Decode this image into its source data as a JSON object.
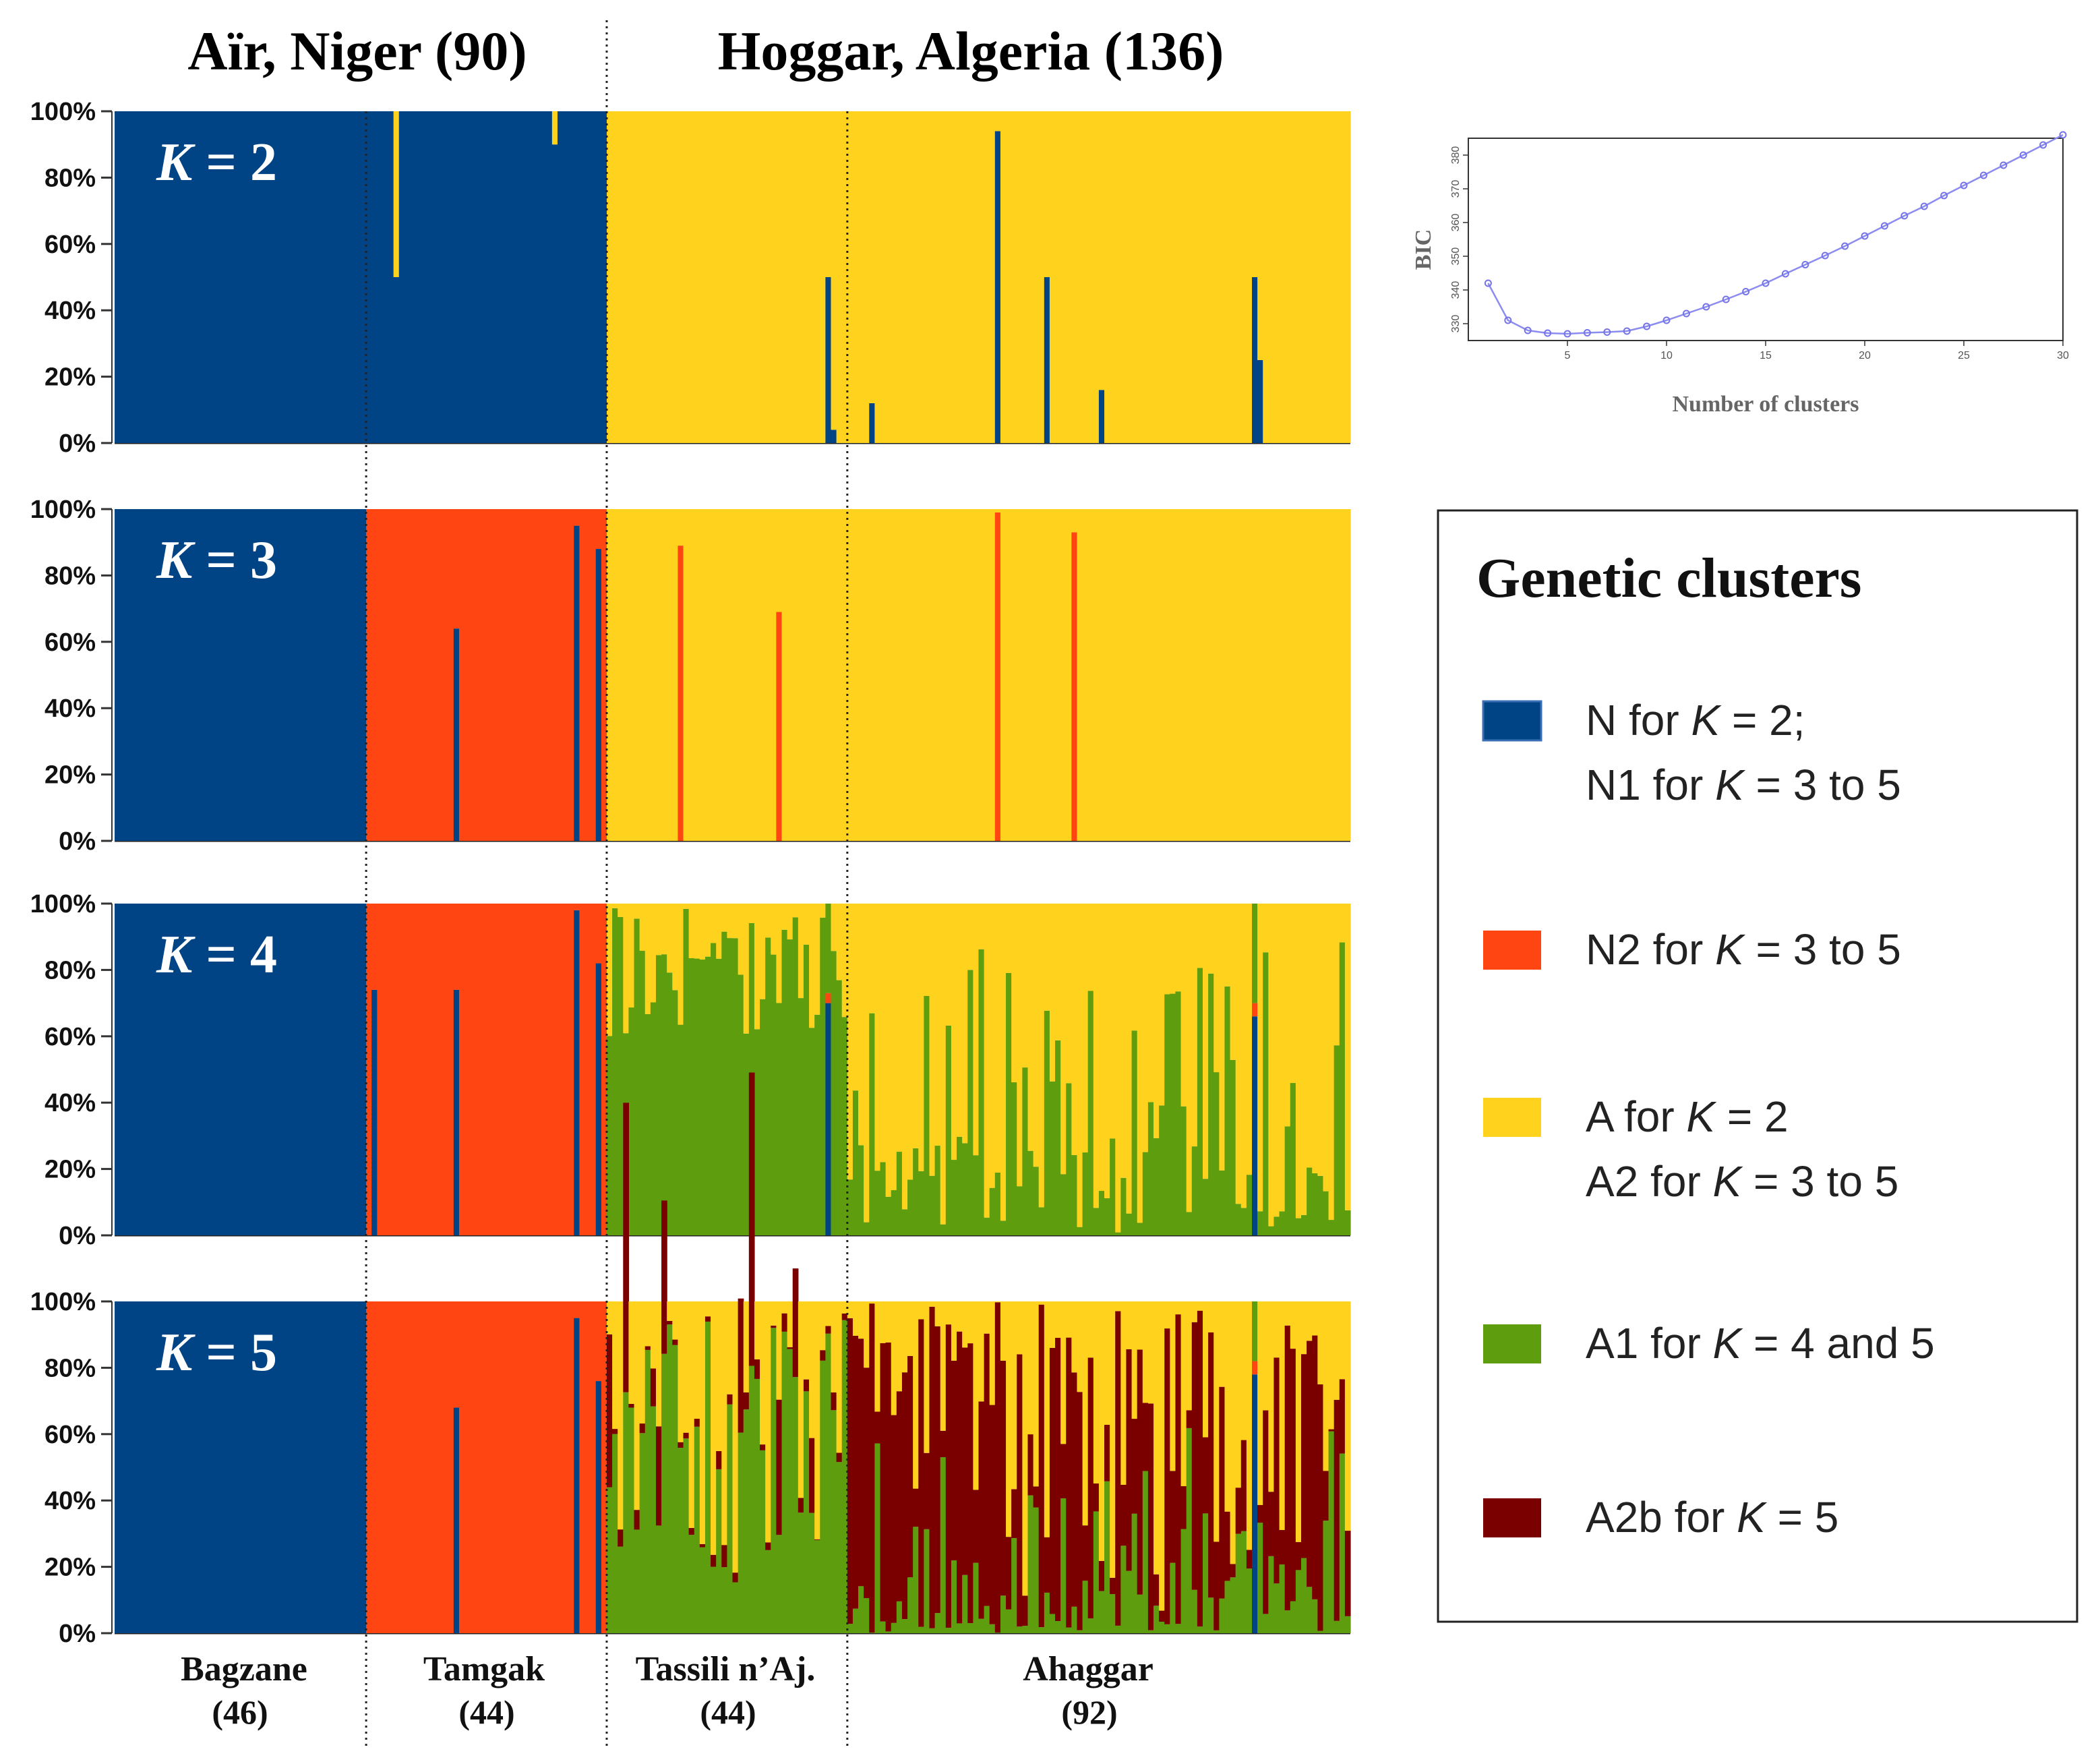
{
  "regions": [
    {
      "label": "Aïr, Niger (90)"
    },
    {
      "label": "Hoggar, Algeria (136)"
    }
  ],
  "populations": [
    {
      "name": "Bagzane",
      "count": "(46)"
    },
    {
      "name": "Tamgak",
      "count": "(44)"
    },
    {
      "name": "Tassili n’Aj.",
      "count": "(44)"
    },
    {
      "name": "Ahaggar",
      "count": "(92)"
    }
  ],
  "colors": {
    "N1": "#004485",
    "N2": "#FF4612",
    "A2": "#FFD21E",
    "A1": "#5E9E0E",
    "A2b": "#7A0000"
  },
  "chart_data": [
    {
      "type": "bar",
      "subtype": "stacked-admixture",
      "title": "K = 2",
      "ylim": [
        0,
        100
      ],
      "yticks": [
        "0%",
        "20%",
        "40%",
        "60%",
        "80%",
        "100%"
      ],
      "clusters": [
        "N1",
        "A2"
      ],
      "n_individuals": 226,
      "notable_individuals": [
        {
          "population": "Tamgak",
          "index": 5,
          "N1": 50,
          "A2": 50
        },
        {
          "population": "Tamgak",
          "index": 34,
          "N1": 90,
          "A2": 10
        },
        {
          "population": "Tassili n’Aj.",
          "index": 40,
          "N1": 50,
          "A2": 50
        },
        {
          "population": "Tassili n’Aj.",
          "index": 41,
          "N1": 4,
          "A2": 96
        },
        {
          "population": "Ahaggar",
          "index": 4,
          "N1": 12,
          "A2": 88
        },
        {
          "population": "Ahaggar",
          "index": 27,
          "N1": 94,
          "A2": 6
        },
        {
          "population": "Ahaggar",
          "index": 36,
          "N1": 50,
          "A2": 50
        },
        {
          "population": "Ahaggar",
          "index": 46,
          "N1": 16,
          "A2": 84
        },
        {
          "population": "Ahaggar",
          "index": 74,
          "N1": 50,
          "A2": 50
        },
        {
          "population": "Ahaggar",
          "index": 75,
          "N1": 25,
          "A2": 75
        }
      ]
    },
    {
      "type": "bar",
      "subtype": "stacked-admixture",
      "title": "K = 3",
      "ylim": [
        0,
        100
      ],
      "yticks": [
        "0%",
        "20%",
        "40%",
        "60%",
        "80%",
        "100%"
      ],
      "clusters": [
        "N1",
        "N2",
        "A2"
      ],
      "n_individuals": 226,
      "notable_individuals": [
        {
          "population": "Tamgak",
          "index": 16,
          "N1": 64,
          "N2": 36
        },
        {
          "population": "Tamgak",
          "index": 38,
          "N1": 95,
          "N2": 5
        },
        {
          "population": "Tamgak",
          "index": 42,
          "N1": 88,
          "N2": 12
        },
        {
          "population": "Tassili n’Aj.",
          "index": 13,
          "N2": 89,
          "A2": 11
        },
        {
          "population": "Tassili n’Aj.",
          "index": 31,
          "N2": 69,
          "A2": 31
        },
        {
          "population": "Ahaggar",
          "index": 27,
          "N2": 99,
          "A2": 1
        },
        {
          "population": "Ahaggar",
          "index": 41,
          "N2": 93,
          "A2": 7
        }
      ]
    },
    {
      "type": "bar",
      "subtype": "stacked-admixture",
      "title": "K = 4",
      "ylim": [
        0,
        100
      ],
      "yticks": [
        "0%",
        "20%",
        "40%",
        "60%",
        "80%",
        "100%"
      ],
      "clusters": [
        "N1",
        "N2",
        "A2",
        "A1"
      ],
      "n_individuals": 226,
      "notable_individuals": [
        {
          "population": "Tamgak",
          "index": 1,
          "N1": 74,
          "N2": 26
        },
        {
          "population": "Tamgak",
          "index": 16,
          "N1": 74,
          "N2": 26
        },
        {
          "population": "Tamgak",
          "index": 38,
          "N1": 98,
          "N2": 2
        },
        {
          "population": "Tamgak",
          "index": 42,
          "N1": 82,
          "N2": 18
        },
        {
          "population": "Tassili n’Aj.",
          "index": 40,
          "N1": 70,
          "N2": 3,
          "A1": 27
        },
        {
          "population": "Ahaggar",
          "index": 74,
          "N1": 66,
          "N2": 4,
          "A1": 30
        }
      ]
    },
    {
      "type": "bar",
      "subtype": "stacked-admixture",
      "title": "K = 5",
      "ylim": [
        0,
        100
      ],
      "yticks": [
        "0%",
        "20%",
        "40%",
        "60%",
        "80%",
        "100%"
      ],
      "clusters": [
        "N1",
        "N2",
        "A2",
        "A1",
        "A2b"
      ],
      "n_individuals": 226,
      "notable_individuals": [
        {
          "population": "Tamgak",
          "index": 16,
          "N1": 68,
          "N2": 32
        },
        {
          "population": "Tamgak",
          "index": 38,
          "N1": 95,
          "N2": 5
        },
        {
          "population": "Tamgak",
          "index": 42,
          "N1": 76,
          "N2": 24
        },
        {
          "population": "Ahaggar",
          "index": 74,
          "N1": 78,
          "N2": 4,
          "A1": 18
        }
      ]
    },
    {
      "type": "line",
      "title": "",
      "xlabel": "Number of clusters",
      "ylabel": "BIC",
      "xlim": [
        0,
        30
      ],
      "ylim": [
        325,
        385
      ],
      "xticks": [
        5,
        10,
        15,
        20,
        25,
        30
      ],
      "yticks": [
        330,
        340,
        350,
        360,
        370,
        380
      ],
      "x": [
        1,
        2,
        3,
        4,
        5,
        6,
        7,
        8,
        9,
        10,
        11,
        12,
        13,
        14,
        15,
        16,
        17,
        18,
        19,
        20,
        21,
        22,
        23,
        24,
        25,
        26,
        27,
        28,
        29,
        30
      ],
      "y": [
        342,
        331,
        328,
        327.2,
        327,
        327.3,
        327.5,
        327.8,
        329.2,
        331,
        333,
        335,
        337.2,
        339.5,
        342,
        344.8,
        347.5,
        350.2,
        353,
        356,
        359,
        362,
        364.8,
        368,
        371,
        374,
        377,
        380,
        383,
        386
      ]
    }
  ],
  "legend": {
    "title": "Genetic clusters",
    "items": [
      {
        "cluster": "N1",
        "lines": [
          [
            "N for ",
            "K",
            " = 2;"
          ],
          [
            "N1 for ",
            "K",
            " = 3 to 5"
          ]
        ]
      },
      {
        "cluster": "N2",
        "lines": [
          [
            "N2 for ",
            "K",
            " = 3 to 5"
          ]
        ]
      },
      {
        "cluster": "A2",
        "lines": [
          [
            "A for ",
            "K",
            " = 2"
          ],
          [
            "A2 for ",
            "K",
            " = 3 to 5"
          ]
        ]
      },
      {
        "cluster": "A1",
        "lines": [
          [
            "A1 for ",
            "K",
            " = 4 and 5"
          ]
        ]
      },
      {
        "cluster": "A2b",
        "lines": [
          [
            "A2b for ",
            "K",
            " = 5"
          ]
        ]
      }
    ]
  }
}
